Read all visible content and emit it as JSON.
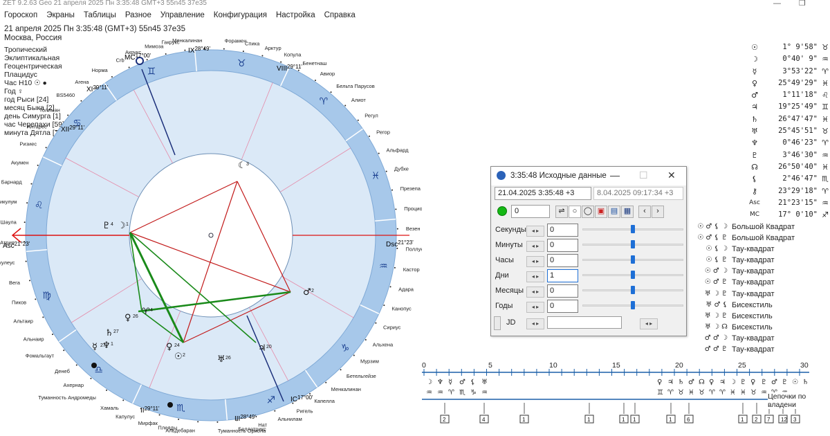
{
  "window": {
    "title": "ZET 9.2.63 Geo   21 апреля 2025  Пн   3:35:48 GMT+3 55n45  37e35"
  },
  "menu": [
    "Гороскоп",
    "Экраны",
    "Таблицы",
    "Разное",
    "Управление",
    "Конфигурация",
    "Настройка",
    "Справка"
  ],
  "info": {
    "line1": "21 апреля 2025  Пн    3:35:48 (GMT+3) 55n45  37e35",
    "line2": "Москва, Россия"
  },
  "params": [
    "Тропический",
    "Эклиптикальная",
    "Геоцентрическая",
    "Плацидус",
    "Час Н10 ☉ ●",
    "Год ♀",
    "год Рыси [24]",
    "месяц Быка [2]",
    "день Симурга [1]",
    "час Черепахи [59]",
    "минута Дятла [7]"
  ],
  "wheel": {
    "asc": {
      "label": "Asc",
      "deg": "21°23'"
    },
    "dsc": {
      "label": "Dsc",
      "deg": "21°23'"
    },
    "mc": {
      "label": "MC",
      "deg": "17°00'"
    },
    "ic": {
      "label": "IC",
      "deg": "17°00'"
    },
    "cusps": [
      {
        "roman": "IX",
        "deg": "28°49'"
      },
      {
        "roman": "VIII",
        "deg": "29°11'"
      },
      {
        "roman": "XI",
        "deg": "29°11'"
      },
      {
        "roman": "II",
        "deg": "29°11'"
      },
      {
        "roman": "III",
        "deg": "28°49'"
      },
      {
        "roman": "XII",
        "deg": "29°11'"
      }
    ],
    "stars": [
      "Акрукс",
      "Мимоза",
      "Гакрукс",
      "Менкалинан",
      "Форамен",
      "Спика",
      "Арктур",
      "Копула",
      "Бенетнаш",
      "Авиор",
      "Бельта Парусов",
      "Алиот",
      "Регул",
      "Регор",
      "Альфард",
      "Дубхе",
      "Презепа",
      "Процион",
      "Везен",
      "Поллукс",
      "Кастор",
      "Адара",
      "Канопус",
      "Сириус",
      "Альхена",
      "Мурзим",
      "Бетельгейзе",
      "Менкалинан",
      "Капелла",
      "Ригель",
      "Альнилам",
      "Нат",
      "Беллатрикс",
      "Туманность Ориона",
      "Альдебаран",
      "Плеяды",
      "Мирфак",
      "Капулус",
      "Хамаль",
      "Туманность Андромеды",
      "Ахернар",
      "Денеб",
      "Фомальгаут",
      "Альнаир",
      "Альтаир",
      "Пиков",
      "Вега",
      "Акулеус",
      "Атрия",
      "Шаула",
      "Спикулум",
      "Барнард",
      "Акумен",
      "Ризиес",
      "Антарес",
      "Толиман",
      "BS5460",
      "Агена",
      "Норма",
      "Crb"
    ],
    "planet_markers": [
      {
        "glyph": "☾",
        "num": "3"
      },
      {
        "glyph": "♂",
        "num": "2"
      },
      {
        "glyph": "♇",
        "num": "4"
      },
      {
        "glyph": "☽",
        "num": "1"
      },
      {
        "glyph": "♀",
        "num": "26"
      },
      {
        "glyph": "♄",
        "num": "27"
      },
      {
        "glyph": "☿",
        "num": "27"
      },
      {
        "glyph": "♆",
        "num": "1"
      },
      {
        "glyph": "♀",
        "num": "24"
      },
      {
        "glyph": "☉",
        "num": "2"
      },
      {
        "glyph": "♅",
        "num": "26"
      },
      {
        "glyph": "♃",
        "num": "20"
      },
      {
        "glyph": "♈",
        "num": "4"
      }
    ]
  },
  "planets": [
    {
      "glyph": "☉",
      "deg": "1° 9'58\"",
      "sign": "♉"
    },
    {
      "glyph": "☽",
      "deg": "0°40' 9\"",
      "sign": "♒"
    },
    {
      "glyph": "☿",
      "deg": "3°53'22\"",
      "sign": "♈"
    },
    {
      "glyph": "♀",
      "deg": "25°49'29\"",
      "sign": "♓"
    },
    {
      "glyph": "♂",
      "deg": "1°11'18\"",
      "sign": "♌"
    },
    {
      "glyph": "♃",
      "deg": "19°25'49\"",
      "sign": "♊"
    },
    {
      "glyph": "♄",
      "deg": "26°47'47\"",
      "sign": "♓"
    },
    {
      "glyph": "♅",
      "deg": "25°45'51\"",
      "sign": "♉"
    },
    {
      "glyph": "♆",
      "deg": "0°46'23\"",
      "sign": "♈"
    },
    {
      "glyph": "♇",
      "deg": "3°46'30\"",
      "sign": "♒"
    },
    {
      "glyph": "☊",
      "deg": "26°50'40\"",
      "sign": "♓"
    },
    {
      "glyph": "⚸",
      "deg": "2°46'47\"",
      "sign": "♏"
    },
    {
      "glyph": "⚷",
      "deg": "23°29'18\"",
      "sign": "♈"
    },
    {
      "glyph": "Asc",
      "deg": "21°23'15\"",
      "sign": "♒"
    },
    {
      "glyph": "MC",
      "deg": "17° 0'10\"",
      "sign": "♐"
    }
  ],
  "aspects": [
    {
      "glyphs": "☉ ♂ ⚸ ☽",
      "name": "Большой Квадрат"
    },
    {
      "glyphs": "☉ ♂ ⚸ ♇",
      "name": "Большой Квадрат"
    },
    {
      "glyphs": "☉ ⚸ ☽",
      "name": "Тау-квадрат"
    },
    {
      "glyphs": "☉ ⚸ ♇",
      "name": "Тау-квадрат"
    },
    {
      "glyphs": "☉ ♂ ☽",
      "name": "Тау-квадрат"
    },
    {
      "glyphs": "☉ ♂ ♇",
      "name": "Тау-квадрат"
    },
    {
      "glyphs": "♅ ☽ ♇",
      "name": "Тау-квадрат"
    },
    {
      "glyphs": "♅ ♂ ⚸",
      "name": "Бисекстиль"
    },
    {
      "glyphs": "♅ ☽ ♇",
      "name": "Бисекстиль"
    },
    {
      "glyphs": "♅ ☽ ☊",
      "name": "Бисекстиль"
    },
    {
      "glyphs": "♂ ♂ ☽",
      "name": "Тау-квадрат"
    },
    {
      "glyphs": "♂ ♂ ♇",
      "name": "Тау-квадрат"
    }
  ],
  "dialog": {
    "title": "3:35:48 Исходные данные",
    "datetime": "21.04.2025   3:35:48  +3",
    "datetime2": "8.04.2025   09:17:34  +3",
    "step_value": "0",
    "rows": [
      {
        "label": "Секунды",
        "value": "0",
        "level": 0.5
      },
      {
        "label": "Минуты",
        "value": "0",
        "level": 0.5
      },
      {
        "label": "Часы",
        "value": "0",
        "level": 0.5
      },
      {
        "label": "Дни",
        "value": "1",
        "level": 0.5
      },
      {
        "label": "Месяцы",
        "value": "0",
        "level": 0.5
      },
      {
        "label": "Годы",
        "value": "0",
        "level": 0.5
      }
    ],
    "jd_label": "JD"
  },
  "ruler": {
    "ticks": [
      "0",
      "5",
      "10",
      "15",
      "20",
      "25",
      "30"
    ],
    "caption": "Цепочки по владени",
    "row1": [
      "☽",
      "♆",
      "☿",
      "♂",
      "⚸",
      "♅",
      "♀",
      "♃",
      "♄",
      "♂",
      "☊",
      "♀",
      "♃",
      "☽",
      "♇",
      "♀",
      "♇",
      "♂",
      "♇",
      "☉",
      "♄"
    ],
    "row2": [
      "♒",
      "♒",
      "♈",
      "♏",
      "♑",
      "♒",
      "♊",
      "♈",
      "♉",
      "♓",
      "♉",
      "♈",
      "♈",
      "♓",
      "♓",
      "♉",
      "♒",
      "♈",
      "♒"
    ],
    "boxes": [
      "2",
      "4",
      "1",
      "1",
      "1",
      "1",
      "1",
      "6",
      "1",
      "2",
      "7",
      "12",
      "3"
    ]
  }
}
